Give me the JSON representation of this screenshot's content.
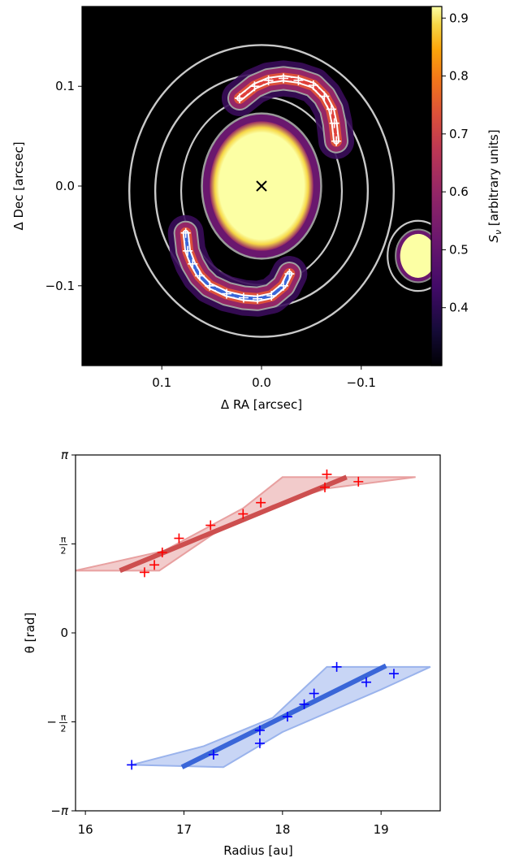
{
  "chart_data": [
    {
      "type": "heatmap",
      "xlabel": "Δ RA [arcsec]",
      "ylabel": "Δ Dec [arcsec]",
      "xlim": [
        0.18,
        -0.18
      ],
      "ylim": [
        -0.18,
        0.18
      ],
      "xticks": [
        0.1,
        0.0,
        -0.1
      ],
      "xtick_labels": [
        "0.1",
        "0.0",
        "−0.1"
      ],
      "yticks": [
        0.1,
        0.0,
        -0.1
      ],
      "ytick_labels": [
        "0.1",
        "0.0",
        "−0.1"
      ],
      "colorbar": {
        "label": "S_ν [arbitrary units]",
        "range": [
          0.3,
          0.92
        ],
        "ticks": [
          0.4,
          0.5,
          0.6,
          0.7,
          0.8,
          0.9
        ],
        "tick_labels": [
          "0.4",
          "0.5",
          "0.6",
          "0.7",
          "0.8",
          "0.9"
        ],
        "colormap": "inferno"
      },
      "center_marker": {
        "x": 0.0,
        "y": 0.0,
        "symbol": "×"
      },
      "central_source": {
        "x": 0.0,
        "y": 0.0,
        "rx": 0.052,
        "ry": 0.065
      },
      "companion_source": {
        "x": -0.157,
        "y": -0.07,
        "rx": 0.018,
        "ry": 0.022
      },
      "spirals": [
        {
          "name": "north",
          "color": "#e0403a",
          "points": [
            {
              "x": 0.022,
              "y": 0.088
            },
            {
              "x": 0.007,
              "y": 0.1
            },
            {
              "x": -0.007,
              "y": 0.106
            },
            {
              "x": -0.022,
              "y": 0.108
            },
            {
              "x": -0.037,
              "y": 0.106
            },
            {
              "x": -0.052,
              "y": 0.101
            },
            {
              "x": -0.063,
              "y": 0.09
            },
            {
              "x": -0.07,
              "y": 0.077
            },
            {
              "x": -0.073,
              "y": 0.063
            },
            {
              "x": -0.075,
              "y": 0.045
            }
          ]
        },
        {
          "name": "south",
          "color": "#3a66d8",
          "points": [
            {
              "x": 0.076,
              "y": -0.047
            },
            {
              "x": 0.074,
              "y": -0.065
            },
            {
              "x": 0.069,
              "y": -0.078
            },
            {
              "x": 0.062,
              "y": -0.09
            },
            {
              "x": 0.052,
              "y": -0.1
            },
            {
              "x": 0.035,
              "y": -0.108
            },
            {
              "x": 0.018,
              "y": -0.112
            },
            {
              "x": 0.004,
              "y": -0.113
            },
            {
              "x": -0.01,
              "y": -0.11
            },
            {
              "x": -0.022,
              "y": -0.1
            },
            {
              "x": -0.028,
              "y": -0.088
            }
          ]
        }
      ]
    },
    {
      "type": "scatter",
      "xlabel": "Radius [au]",
      "ylabel": "θ [rad]",
      "xlim": [
        15.9,
        19.6
      ],
      "ylim": [
        -3.1416,
        3.1416
      ],
      "xticks": [
        16,
        17,
        18,
        19
      ],
      "xtick_labels": [
        "16",
        "17",
        "18",
        "19"
      ],
      "yticks": [
        3.1416,
        1.5708,
        0,
        -1.5708,
        -3.1416
      ],
      "ytick_labels": [
        "π",
        "π/2",
        "0",
        "−π/2",
        "−π"
      ],
      "series": [
        {
          "color": "#ff0000",
          "fit_color": "#cd4f4f",
          "band_color": "#e8a0a0",
          "points": [
            {
              "x": 16.6,
              "y": 1.07
            },
            {
              "x": 16.7,
              "y": 1.2
            },
            {
              "x": 16.78,
              "y": 1.42
            },
            {
              "x": 16.95,
              "y": 1.67
            },
            {
              "x": 17.27,
              "y": 1.9
            },
            {
              "x": 17.6,
              "y": 2.1
            },
            {
              "x": 17.78,
              "y": 2.3
            },
            {
              "x": 18.43,
              "y": 2.57
            },
            {
              "x": 18.45,
              "y": 2.8
            },
            {
              "x": 18.77,
              "y": 2.67
            }
          ],
          "fit": [
            {
              "x": 16.35,
              "y": 1.1
            },
            {
              "x": 18.65,
              "y": 2.75
            }
          ],
          "band_upper": [
            {
              "x": 15.9,
              "y": 1.1
            },
            {
              "x": 16.8,
              "y": 1.45
            },
            {
              "x": 17.6,
              "y": 2.2
            },
            {
              "x": 18.0,
              "y": 2.75
            },
            {
              "x": 19.35,
              "y": 2.75
            }
          ],
          "band_lower": [
            {
              "x": 16.75,
              "y": 1.1
            },
            {
              "x": 17.3,
              "y": 1.75
            },
            {
              "x": 17.9,
              "y": 2.25
            },
            {
              "x": 18.45,
              "y": 2.55
            },
            {
              "x": 19.35,
              "y": 2.75
            }
          ]
        },
        {
          "color": "#0000ff",
          "fit_color": "#3a66d8",
          "band_color": "#9ab3ec",
          "points": [
            {
              "x": 16.47,
              "y": -2.33
            },
            {
              "x": 17.3,
              "y": -2.15
            },
            {
              "x": 17.77,
              "y": -1.95
            },
            {
              "x": 17.77,
              "y": -1.72
            },
            {
              "x": 18.05,
              "y": -1.48
            },
            {
              "x": 18.22,
              "y": -1.26
            },
            {
              "x": 18.32,
              "y": -1.07
            },
            {
              "x": 18.55,
              "y": -0.6
            },
            {
              "x": 18.85,
              "y": -0.87
            },
            {
              "x": 19.13,
              "y": -0.72
            }
          ],
          "fit": [
            {
              "x": 16.98,
              "y": -2.37
            },
            {
              "x": 19.05,
              "y": -0.58
            }
          ],
          "band_upper": [
            {
              "x": 16.47,
              "y": -2.33
            },
            {
              "x": 17.2,
              "y": -2.0
            },
            {
              "x": 17.9,
              "y": -1.5
            },
            {
              "x": 18.45,
              "y": -0.6
            },
            {
              "x": 19.5,
              "y": -0.6
            }
          ],
          "band_lower": [
            {
              "x": 16.47,
              "y": -2.33
            },
            {
              "x": 17.4,
              "y": -2.37
            },
            {
              "x": 18.0,
              "y": -1.75
            },
            {
              "x": 19.0,
              "y": -1.0
            },
            {
              "x": 19.5,
              "y": -0.6
            }
          ]
        }
      ]
    }
  ]
}
